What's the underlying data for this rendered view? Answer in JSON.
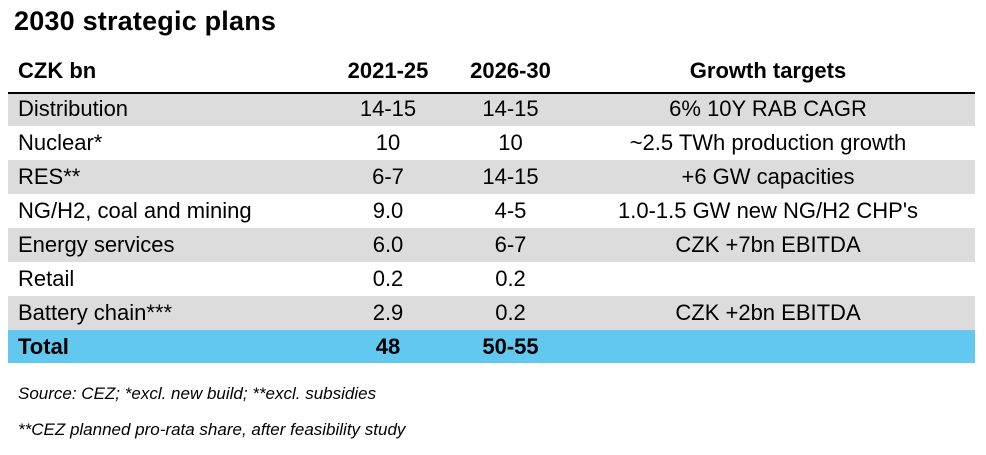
{
  "title": "2030 strategic plans",
  "header": {
    "unit": "CZK bn",
    "period_1": "2021-25",
    "period_2": "2026-30",
    "targets": "Growth targets"
  },
  "rows": [
    {
      "label": "Distribution",
      "p1": "14-15",
      "p2": "14-15",
      "target": "6% 10Y RAB CAGR"
    },
    {
      "label": "Nuclear*",
      "p1": "10",
      "p2": "10",
      "target": "~2.5 TWh production growth"
    },
    {
      "label": "RES**",
      "p1": "6-7",
      "p2": "14-15",
      "target": "+6 GW capacities"
    },
    {
      "label": "NG/H2, coal and mining",
      "p1": "9.0",
      "p2": "4-5",
      "target": "1.0-1.5 GW new NG/H2 CHP's"
    },
    {
      "label": "Energy services",
      "p1": "6.0",
      "p2": "6-7",
      "target": "CZK +7bn EBITDA"
    },
    {
      "label": "Retail",
      "p1": "0.2",
      "p2": "0.2",
      "target": ""
    },
    {
      "label": "Battery chain***",
      "p1": "2.9",
      "p2": "0.2",
      "target": "CZK +2bn EBITDA"
    }
  ],
  "total": {
    "label": "Total",
    "p1": "48",
    "p2": "50-55",
    "target": ""
  },
  "notes": {
    "source": "Source: CEZ; *excl. new build; **excl. subsidies",
    "footnote": "**CEZ planned pro-rata share, after feasibility study"
  },
  "colors": {
    "shaded_row": "#dcdcdc",
    "total_row": "#63c8f0"
  }
}
